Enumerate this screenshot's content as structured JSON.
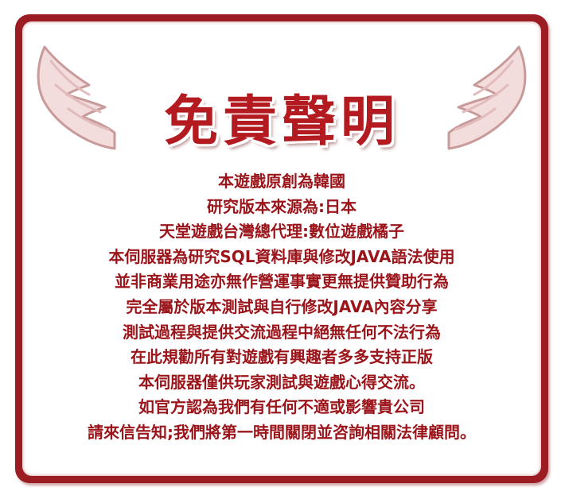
{
  "title": "免責聲明",
  "colors": {
    "border": "#9b1c22",
    "title": "#b41b20",
    "text": "#9b141a",
    "wing_fill": "#f3dcdc",
    "wing_stroke": "#c89a9a"
  },
  "decorations": {
    "left_icon": "angel-wing-icon",
    "right_icon": "angel-wing-icon"
  },
  "lines": [
    "本遊戲原創為韓國",
    "研究版本來源為:日本",
    "天堂遊戲台灣總代理:數位遊戲橘子",
    "本伺服器為研究SQL資料庫與修改JAVA語法使用",
    "並非商業用途亦無作營運事實更無提供贊助行為",
    "完全屬於版本測試與自行修改JAVA內容分享",
    "測試過程與提供交流過程中絕無任何不法行為",
    "在此規勸所有對遊戲有興趣者多多支持正版",
    "本伺服器僅供玩家測試與遊戲心得交流。",
    "如官方認為我們有任何不適或影響貴公司",
    "請來信告知;我們將第一時間關閉並咨詢相關法律顧問。"
  ]
}
